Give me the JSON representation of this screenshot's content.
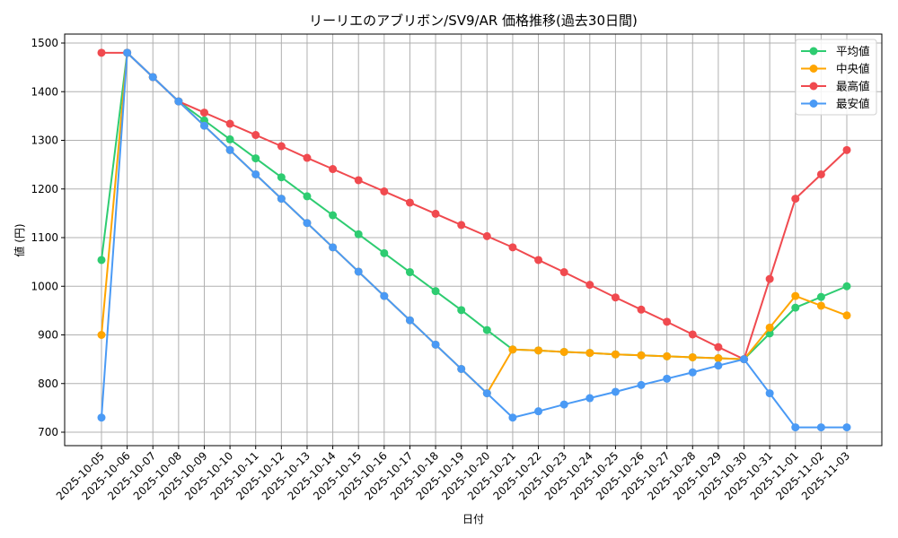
{
  "chart_data": {
    "type": "line",
    "title": "リーリエのアブリボン/SV9/AR 価格推移(過去30日間)",
    "xlabel": "日付",
    "ylabel": "値 (円)",
    "ylim": [
      672,
      1518
    ],
    "yticks": [
      700,
      800,
      900,
      1000,
      1100,
      1200,
      1300,
      1400,
      1500
    ],
    "grid": true,
    "legend_position": "upper right",
    "x": [
      "2025-10-05",
      "2025-10-06",
      "2025-10-07",
      "2025-10-08",
      "2025-10-09",
      "2025-10-10",
      "2025-10-11",
      "2025-10-12",
      "2025-10-13",
      "2025-10-14",
      "2025-10-15",
      "2025-10-16",
      "2025-10-17",
      "2025-10-18",
      "2025-10-19",
      "2025-10-20",
      "2025-10-21",
      "2025-10-22",
      "2025-10-23",
      "2025-10-24",
      "2025-10-25",
      "2025-10-26",
      "2025-10-27",
      "2025-10-28",
      "2025-10-29",
      "2025-10-30",
      "2025-10-31",
      "2025-11-01",
      "2025-11-02",
      "2025-11-03"
    ],
    "series": [
      {
        "name": "平均値",
        "color": "#2ecc71",
        "values": [
          1054,
          1480,
          1430,
          1380,
          1341,
          1302,
          1263,
          1224,
          1185,
          1146,
          1107,
          1068,
          1029,
          990,
          951,
          910,
          870,
          868,
          865,
          863,
          860,
          858,
          856,
          854,
          852,
          850,
          903,
          956,
          978,
          1000
        ]
      },
      {
        "name": "中央値",
        "color": "#ffa500",
        "values": [
          900,
          1480,
          1430,
          1380,
          1330,
          1280,
          1230,
          1180,
          1130,
          1080,
          1030,
          980,
          930,
          880,
          830,
          780,
          870,
          868,
          865,
          863,
          860,
          858,
          856,
          854,
          852,
          850,
          915,
          980,
          960,
          940
        ]
      },
      {
        "name": "最高値",
        "color": "#f04a4f",
        "values": [
          1480,
          1480,
          1430,
          1380,
          1357,
          1334,
          1311,
          1288,
          1264,
          1241,
          1218,
          1195,
          1172,
          1149,
          1126,
          1103,
          1080,
          1054,
          1029,
          1003,
          977,
          952,
          927,
          901,
          875,
          850,
          1015,
          1180,
          1230,
          1280
        ]
      },
      {
        "name": "最安値",
        "color": "#4a9af5",
        "values": [
          730,
          1480,
          1430,
          1380,
          1330,
          1280,
          1230,
          1180,
          1130,
          1080,
          1030,
          980,
          930,
          880,
          830,
          780,
          730,
          743,
          757,
          770,
          783,
          797,
          810,
          823,
          837,
          850,
          780,
          710,
          710,
          710
        ]
      }
    ]
  }
}
